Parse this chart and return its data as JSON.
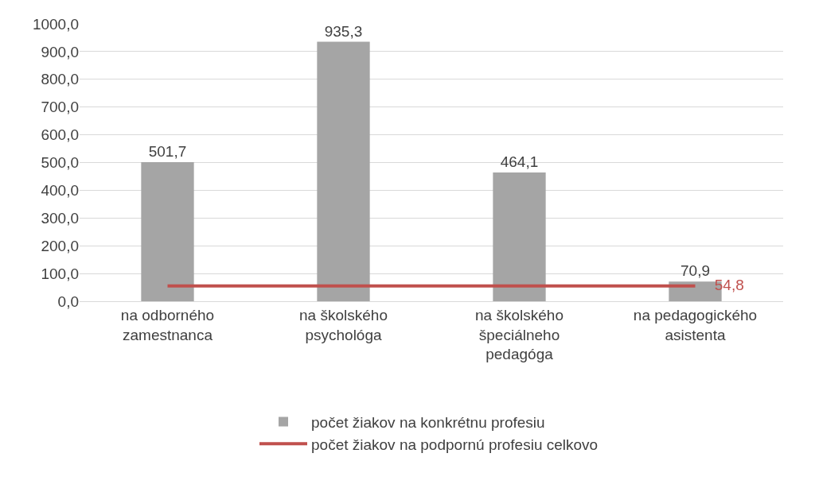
{
  "chart_data": {
    "type": "bar",
    "categories": [
      "na odborného zamestnanca",
      "na školského psychológa",
      "na školského špeciálneho pedagóga",
      "na pedagogického asistenta"
    ],
    "series": [
      {
        "name": "počet žiakov na konkrétnu profesiu",
        "color": "#a5a5a5",
        "values": [
          501.7,
          935.3,
          464.1,
          70.9
        ],
        "value_labels": [
          "501,7",
          "935,3",
          "464,1",
          "70,9"
        ]
      },
      {
        "name": "počet žiakov na podpornú profesiu celkovo",
        "type": "line",
        "color": "#c0504d",
        "values": [
          54.8,
          54.8,
          54.8,
          54.8
        ],
        "value_labels": [
          null,
          null,
          null,
          "54,8"
        ]
      }
    ],
    "ylim": [
      0,
      1000
    ],
    "yticks": [
      {
        "value": 0,
        "label": "0,0"
      },
      {
        "value": 100,
        "label": "100,0"
      },
      {
        "value": 200,
        "label": "200,0"
      },
      {
        "value": 300,
        "label": "300,0"
      },
      {
        "value": 400,
        "label": "400,0"
      },
      {
        "value": 500,
        "label": "500,0"
      },
      {
        "value": 600,
        "label": "600,0"
      },
      {
        "value": 700,
        "label": "700,0"
      },
      {
        "value": 800,
        "label": "800,0"
      },
      {
        "value": 900,
        "label": "900,0"
      },
      {
        "value": 1000,
        "label": "1000,0"
      }
    ],
    "grid": "y",
    "legend": "bottom",
    "marker": "none",
    "line_style": "solid"
  }
}
